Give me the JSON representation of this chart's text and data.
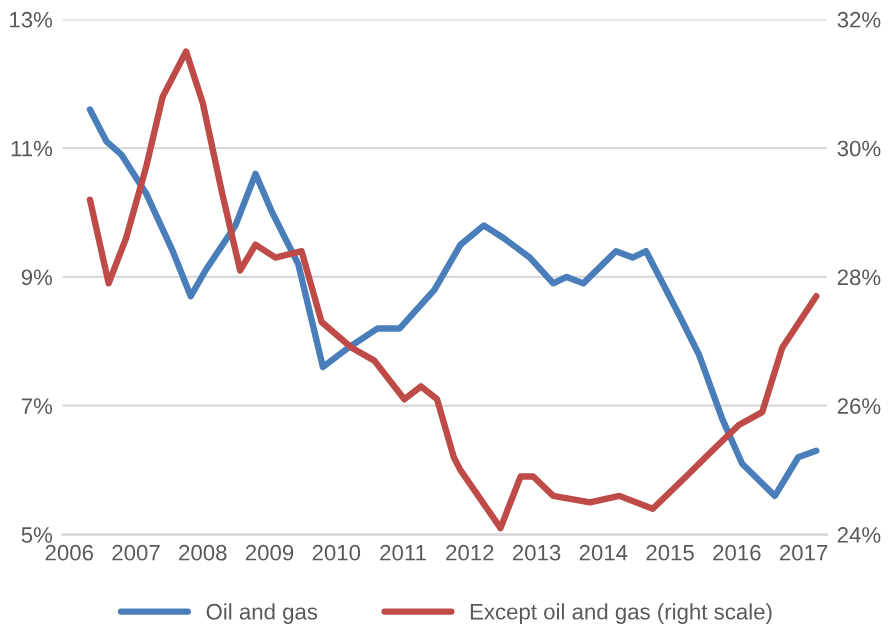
{
  "chart_data": {
    "type": "line",
    "legend": "bottom",
    "grid": "y",
    "line_style": "solid",
    "marker": "none",
    "xlim": [
      2005.9,
      2017.35
    ],
    "xticks": [
      2006,
      2007,
      2008,
      2009,
      2010,
      2011,
      2012,
      2013,
      2014,
      2015,
      2016,
      2017
    ],
    "ylim": [
      5,
      13
    ],
    "yticks": [
      {
        "value": 5,
        "label": "5%"
      },
      {
        "value": 7,
        "label": "7%"
      },
      {
        "value": 9,
        "label": "9%"
      },
      {
        "value": 11,
        "label": "11%"
      },
      {
        "value": 13,
        "label": "13%"
      }
    ],
    "y2lim": [
      24,
      32
    ],
    "y2ticks": [
      {
        "value": 24,
        "label": "24%"
      },
      {
        "value": 26,
        "label": "26%"
      },
      {
        "value": 28,
        "label": "28%"
      },
      {
        "value": 30,
        "label": "30%"
      },
      {
        "value": 32,
        "label": "32%"
      }
    ],
    "series": [
      {
        "name": "Oil and gas",
        "color": "#4a7ebb",
        "x": [
          2006.31,
          2006.56,
          2006.78,
          2007.15,
          2007.55,
          2007.82,
          2008.04,
          2008.49,
          2008.79,
          2009.04,
          2009.43,
          2009.8,
          2010.18,
          2010.62,
          2010.95,
          2011.47,
          2011.86,
          2012.21,
          2012.51,
          2012.9,
          2013.25,
          2013.45,
          2013.7,
          2014.19,
          2014.44,
          2014.64,
          2015.14,
          2015.43,
          2015.78,
          2016.08,
          2016.57,
          2016.92,
          2017.19
        ],
        "values": [
          11.6,
          11.1,
          10.9,
          10.3,
          9.4,
          8.7,
          9.1,
          9.8,
          10.6,
          10.0,
          9.2,
          7.6,
          7.9,
          8.2,
          8.2,
          8.8,
          9.5,
          9.8,
          9.6,
          9.3,
          8.9,
          9.0,
          8.9,
          9.4,
          9.3,
          9.4,
          8.4,
          7.8,
          6.8,
          6.1,
          5.6,
          6.2,
          6.3
        ]
      },
      {
        "name": "Except oil and gas (right scale)",
        "color": "#be4b48",
        "axis": "y2",
        "x": [
          2006.31,
          2006.59,
          2006.85,
          2007.15,
          2007.4,
          2007.75,
          2008.0,
          2008.29,
          2008.56,
          2008.79,
          2009.09,
          2009.48,
          2009.78,
          2010.23,
          2010.57,
          2011.02,
          2011.27,
          2011.51,
          2011.76,
          2011.86,
          2012.26,
          2012.46,
          2012.76,
          2012.95,
          2013.25,
          2013.8,
          2014.24,
          2014.74,
          2015.24,
          2015.63,
          2016.03,
          2016.38,
          2016.68,
          2017.19
        ],
        "values": [
          29.2,
          27.9,
          28.6,
          29.7,
          30.8,
          31.5,
          30.7,
          29.3,
          28.1,
          28.5,
          28.3,
          28.4,
          27.3,
          26.9,
          26.7,
          26.1,
          26.3,
          26.1,
          25.2,
          25.0,
          24.4,
          24.1,
          24.9,
          24.9,
          24.6,
          24.5,
          24.6,
          24.4,
          24.9,
          25.3,
          25.7,
          25.9,
          26.9,
          27.7
        ]
      }
    ]
  }
}
